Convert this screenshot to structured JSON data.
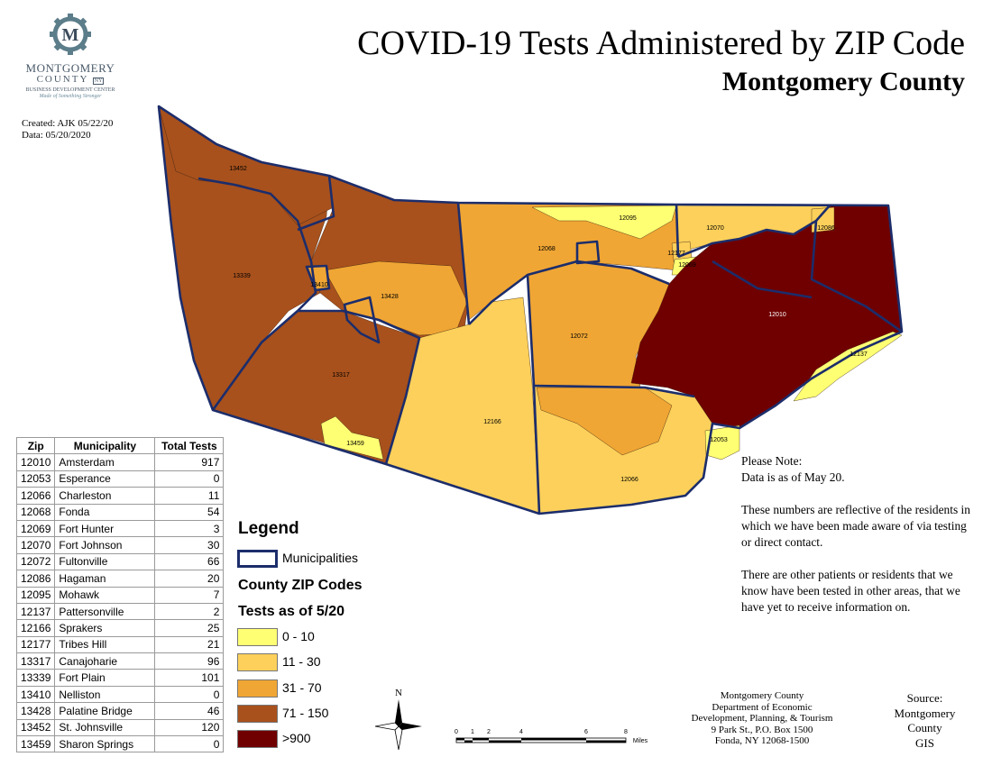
{
  "title": "COVID-19 Tests Administered by ZIP Code",
  "subtitle": "Montgomery County",
  "logo": {
    "line1": "MONTGOMERY",
    "line2": "COUNTY",
    "badge": "NY",
    "line3": "BUSINESS DEVELOPMENT CENTER",
    "tagline": "Made of Something Stronger",
    "monogram": "M"
  },
  "credits": {
    "created": "Created: AJK 05/22/20",
    "data": "Data: 05/20/2020"
  },
  "table": {
    "headers": [
      "Zip",
      "Municipality",
      "Total Tests"
    ],
    "rows": [
      [
        "12010",
        "Amsterdam",
        "917"
      ],
      [
        "12053",
        "Esperance",
        "0"
      ],
      [
        "12066",
        "Charleston",
        "11"
      ],
      [
        "12068",
        "Fonda",
        "54"
      ],
      [
        "12069",
        "Fort Hunter",
        "3"
      ],
      [
        "12070",
        "Fort Johnson",
        "30"
      ],
      [
        "12072",
        "Fultonville",
        "66"
      ],
      [
        "12086",
        "Hagaman",
        "20"
      ],
      [
        "12095",
        "Mohawk",
        "7"
      ],
      [
        "12137",
        "Pattersonville",
        "2"
      ],
      [
        "12166",
        "Sprakers",
        "25"
      ],
      [
        "12177",
        "Tribes Hill",
        "21"
      ],
      [
        "13317",
        "Canajoharie",
        "96"
      ],
      [
        "13339",
        "Fort Plain",
        "101"
      ],
      [
        "13410",
        "Nelliston",
        "0"
      ],
      [
        "13428",
        "Palatine Bridge",
        "46"
      ],
      [
        "13452",
        "St. Johnsville",
        "120"
      ],
      [
        "13459",
        "Sharon Springs",
        "0"
      ]
    ]
  },
  "legend": {
    "title": "Legend",
    "municipalities": "Municipalities",
    "zip_title": "County ZIP Codes",
    "tests_title": "Tests as of 5/20",
    "classes": [
      {
        "label": "0 - 10",
        "color": "#ffff73"
      },
      {
        "label": "11 - 30",
        "color": "#fcd05a"
      },
      {
        "label": "31 - 70",
        "color": "#f0a634"
      },
      {
        "label": "71 - 150",
        "color": "#a8511c"
      },
      {
        "label": ">900",
        "color": "#700000"
      }
    ]
  },
  "note": {
    "p1a": "Please Note:",
    "p1b": "Data is as of May 20.",
    "p2": "These numbers are reflective of the residents in which we have been made aware of via testing or direct contact.",
    "p3": "There are other patients or residents that we know have been tested in other areas, that we have yet to receive information on."
  },
  "address": {
    "l1": "Montgomery County",
    "l2": "Department of Economic",
    "l3": "Development, Planning, & Tourism",
    "l4": "9 Park St., P.O. Box 1500",
    "l5": "Fonda, NY 12068-1500"
  },
  "source": {
    "l1": "Source:",
    "l2": "Montgomery",
    "l3": "County",
    "l4": "GIS"
  },
  "north_label": "N",
  "scale": {
    "ticks": [
      "0",
      "1",
      "2",
      "4",
      "6",
      "8"
    ],
    "unit": "Miles"
  },
  "zip_labels": {
    "z13452": "13452",
    "z13339": "13339",
    "z13410": "13410",
    "z13428": "13428",
    "z13317": "13317",
    "z13459": "13459",
    "z12166": "12166",
    "z12068": "12068",
    "z12095": "12095",
    "z12070": "12070",
    "z12177": "12177",
    "z12069": "12069",
    "z12086": "12086",
    "z12072": "12072",
    "z12010": "12010",
    "z12137": "12137",
    "z12053": "12053",
    "z12066": "12066"
  }
}
